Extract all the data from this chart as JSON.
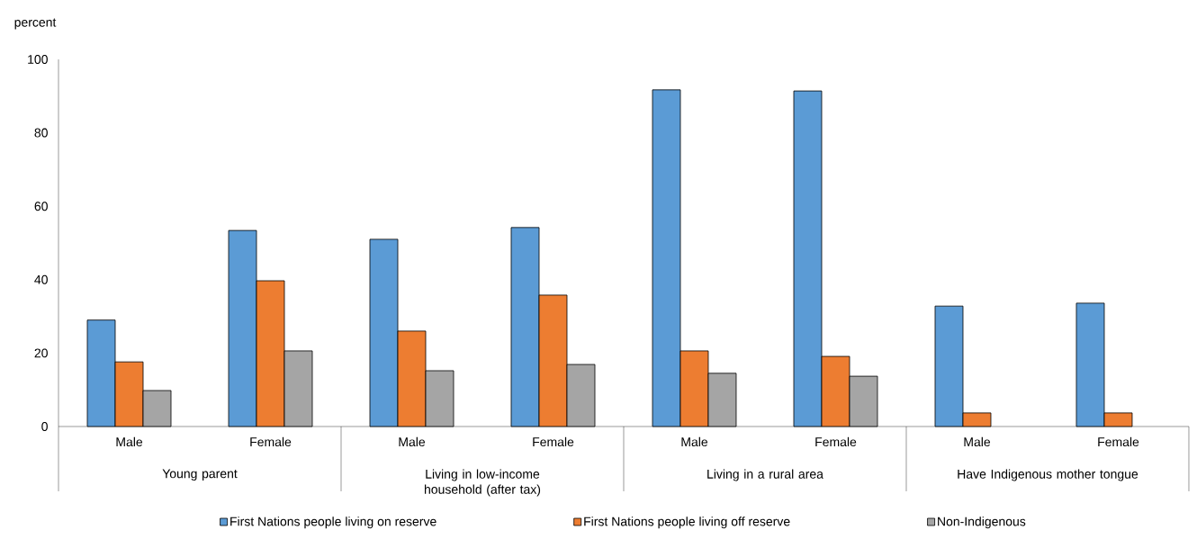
{
  "chart_data": {
    "type": "bar",
    "ylabel": "percent",
    "categories": [
      "Male",
      "Female",
      "Male",
      "Female",
      "Male",
      "Female",
      "Male",
      "Female"
    ],
    "annotations": [
      "Young parent",
      "Living in low-income household (after tax)",
      "Living in a rural area",
      "Have Indigenous mother tongue"
    ],
    "series": [
      {
        "name": "First Nations people living on reserve",
        "color": "#5b9bd5",
        "values": [
          29,
          53.4,
          51,
          54.2,
          91.7,
          91.4,
          32.8,
          33.6
        ]
      },
      {
        "name": "First Nations people living off reserve",
        "color": "#ed7d31",
        "values": [
          17.6,
          39.7,
          26,
          35.8,
          20.6,
          19.1,
          3.7,
          3.7
        ]
      },
      {
        "name": "Non-Indigenous",
        "color": "#a5a5a5",
        "values": [
          9.8,
          20.6,
          15.2,
          16.9,
          14.5,
          13.7,
          null,
          null
        ]
      }
    ],
    "ylim": [
      0,
      100
    ],
    "yticks": [
      0,
      20,
      40,
      60,
      80,
      100
    ],
    "legend": "bottom"
  }
}
